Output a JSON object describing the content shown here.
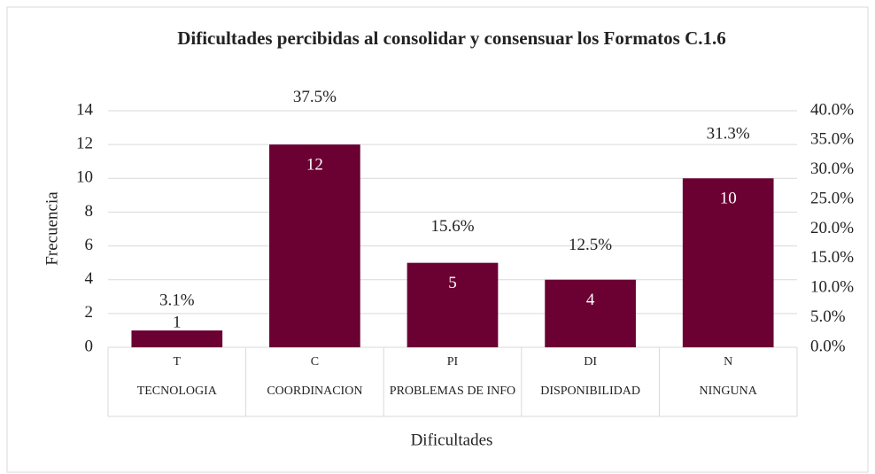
{
  "chart_data": {
    "type": "bar",
    "title": "Dificultades percibidas al consolidar y consensuar los Formatos C.1.6",
    "x_label": "Dificultades",
    "y_label": "Frecuencia",
    "categories": [
      "T",
      "C",
      "PI",
      "DI",
      "N"
    ],
    "category_names": [
      "TECNOLOGIA",
      "COORDINACION",
      "PROBLEMAS DE INFO",
      "DISPONIBILIDAD",
      "NINGUNA"
    ],
    "series": [
      {
        "name": "Frecuencia",
        "color": "#6b0033",
        "values": [
          1,
          12,
          5,
          4,
          10
        ]
      },
      {
        "name": "Porcentaje",
        "axis": "y2",
        "values": [
          3.1,
          37.5,
          15.6,
          12.5,
          31.3
        ],
        "value_labels": [
          "3.1%",
          "37.5%",
          "15.6%",
          "12.5%",
          "31.3%"
        ]
      }
    ],
    "ylim": [
      0,
      14
    ],
    "yticks": [
      0,
      2,
      4,
      6,
      8,
      10,
      12,
      14
    ],
    "y2lim": [
      0,
      40
    ],
    "y2ticks": [
      {
        "value": 0,
        "label": "0.0%"
      },
      {
        "value": 5,
        "label": "5.0%"
      },
      {
        "value": 10,
        "label": "10.0%"
      },
      {
        "value": 15,
        "label": "15.0%"
      },
      {
        "value": 20,
        "label": "20.0%"
      },
      {
        "value": 25,
        "label": "25.0%"
      },
      {
        "value": 30,
        "label": "30.0%"
      },
      {
        "value": 35,
        "label": "35.0%"
      },
      {
        "value": 40,
        "label": "40.0%"
      }
    ],
    "grid": true
  }
}
